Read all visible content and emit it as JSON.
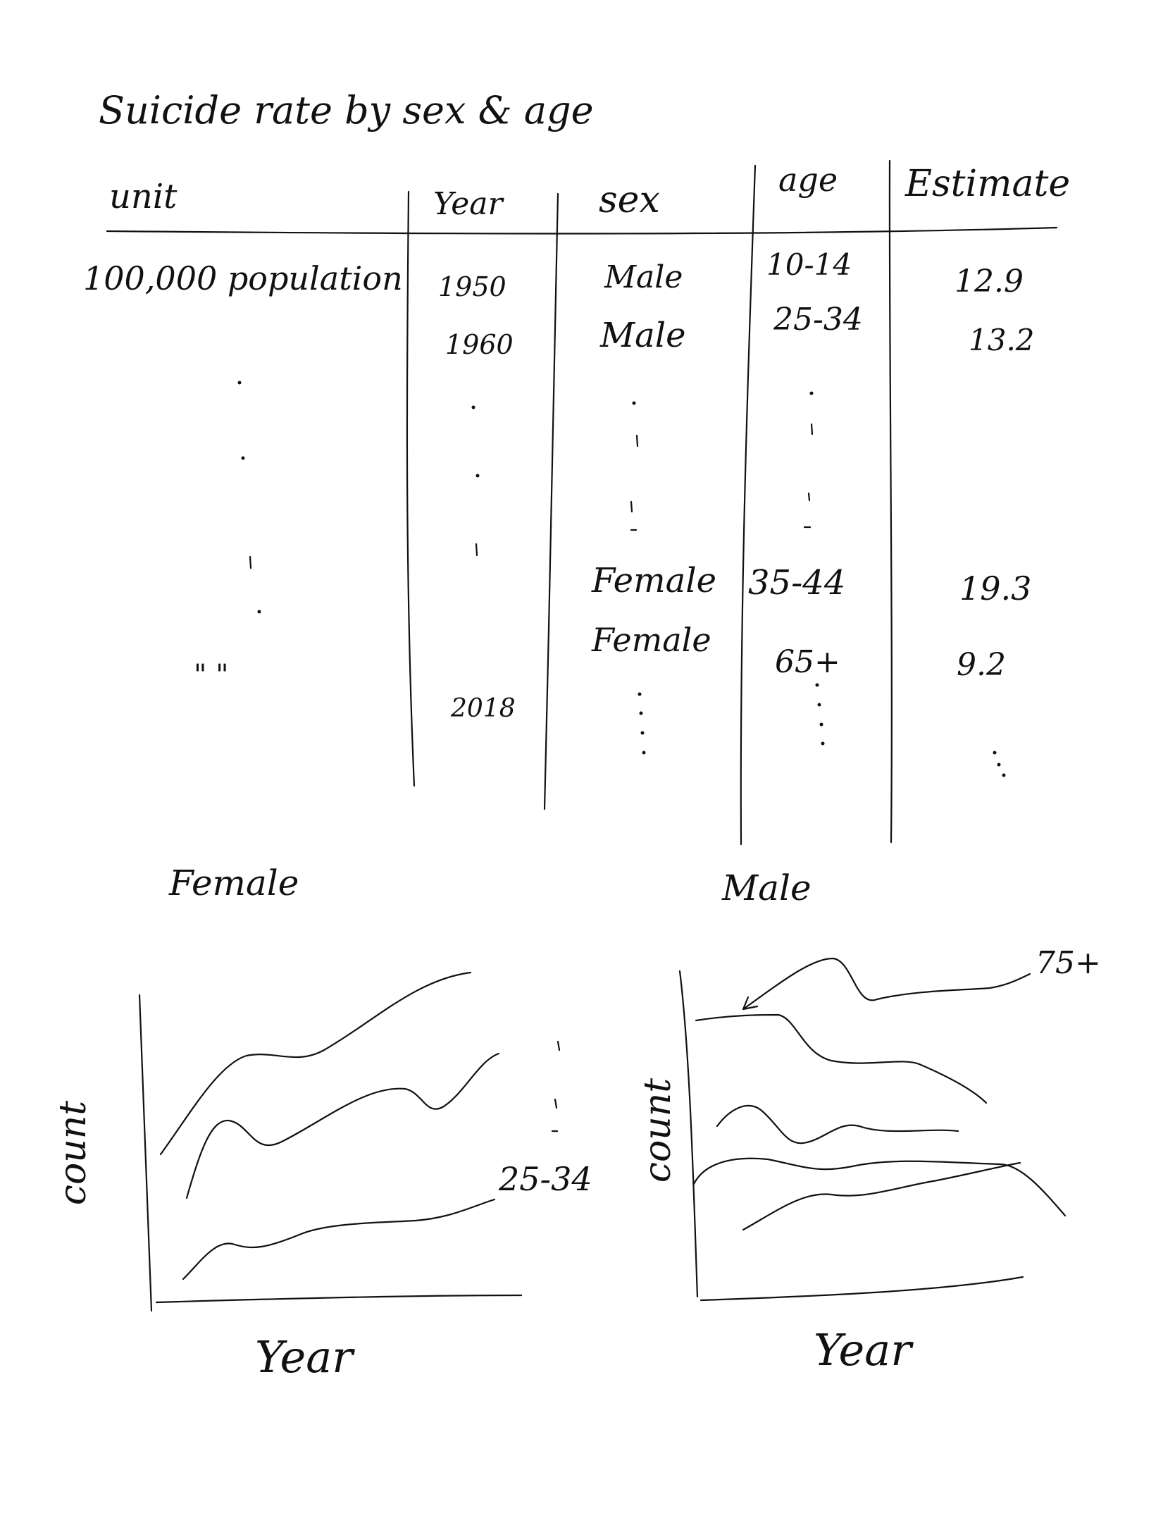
{
  "title": "Suicide rate by sex & age",
  "table": {
    "headers": [
      "unit",
      "Year",
      "sex",
      "age",
      "Estimate"
    ],
    "rows": [
      {
        "unit": "100,000 population",
        "year": "1950",
        "sex": "Male",
        "age": "10-14",
        "estimate": "12.9"
      },
      {
        "unit": "",
        "year": "1960",
        "sex": "Male",
        "age": "25-34",
        "estimate": "13.2"
      },
      {
        "unit": "",
        "year": "",
        "sex": "Female",
        "age": "35-44",
        "estimate": "19.3"
      },
      {
        "unit": "\"   \"",
        "year": "",
        "sex": "Female",
        "age": "65+",
        "estimate": "9.2"
      },
      {
        "unit": "",
        "year": "2018",
        "sex": "",
        "age": "",
        "estimate": ""
      }
    ]
  },
  "charts": {
    "female": {
      "title": "Female",
      "ylabel": "count",
      "xlabel": "Year",
      "annotation": "25-34"
    },
    "male": {
      "title": "Male",
      "ylabel": "count",
      "xlabel": "Year",
      "annotation": "75+"
    }
  }
}
